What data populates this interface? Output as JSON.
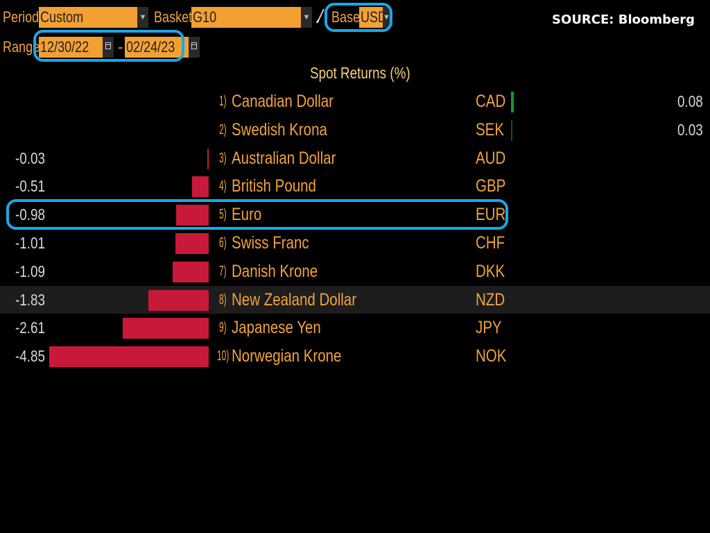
{
  "toolbar": {
    "period_label": "Period",
    "period_value": "Custom",
    "basket_label": "Basket",
    "basket_value": "G10",
    "base_label": "Base",
    "base_value": "USD",
    "range_label": "Range",
    "range_start": "12/30/22",
    "range_separator": "-",
    "range_end": "02/24/23",
    "dropdown_icon": "chevron-down-icon",
    "calendar_icon": "calendar-icon",
    "pencil_icon": "pencil-icon"
  },
  "source": "SOURCE: Bloomberg",
  "chart_title": "Spot Returns (%)",
  "colors": {
    "accent_orange": "#f3a033",
    "negative": "#c8193a",
    "positive": "#159a2a",
    "highlight": "#1aa7e8"
  },
  "rows": [
    {
      "num": "1)",
      "name": "Canadian Dollar",
      "code": "CAD",
      "value_text": "0.08"
    },
    {
      "num": "2)",
      "name": "Swedish Krona",
      "code": "SEK",
      "value_text": "0.03"
    },
    {
      "num": "3)",
      "name": "Australian Dollar",
      "code": "AUD",
      "value_text": "-0.03"
    },
    {
      "num": "4)",
      "name": "British Pound",
      "code": "GBP",
      "value_text": "-0.51"
    },
    {
      "num": "5)",
      "name": "Euro",
      "code": "EUR",
      "value_text": "-0.98"
    },
    {
      "num": "6)",
      "name": "Swiss Franc",
      "code": "CHF",
      "value_text": "-1.01"
    },
    {
      "num": "7)",
      "name": "Danish Krone",
      "code": "DKK",
      "value_text": "-1.09"
    },
    {
      "num": "8)",
      "name": "New Zealand Dollar",
      "code": "NZD",
      "value_text": "-1.83"
    },
    {
      "num": "9)",
      "name": "Japanese Yen",
      "code": "JPY",
      "value_text": "-2.61"
    },
    {
      "num": "10)",
      "name": "Norwegian Krone",
      "code": "NOK",
      "value_text": "-4.85"
    }
  ],
  "chart_data": {
    "type": "bar",
    "title": "Spot Returns (%)",
    "categories": [
      "CAD",
      "SEK",
      "AUD",
      "GBP",
      "EUR",
      "CHF",
      "DKK",
      "NZD",
      "JPY",
      "NOK"
    ],
    "values": [
      0.08,
      0.03,
      -0.03,
      -0.51,
      -0.98,
      -1.01,
      -1.09,
      -1.83,
      -2.61,
      -4.85
    ],
    "orientation": "horizontal",
    "selected_row": "NZD",
    "highlighted_row": "EUR"
  }
}
